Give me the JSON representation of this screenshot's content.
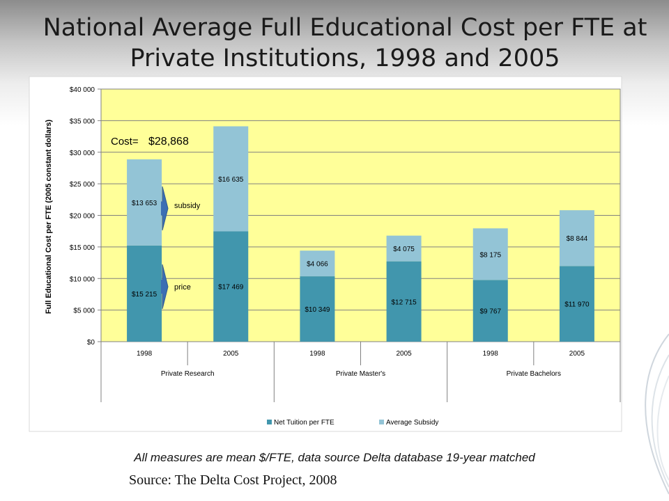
{
  "slide": {
    "title_line1": "National Average Full Educational Cost per FTE at",
    "title_line2": "Private Institutions, 1998 and 2005",
    "footnote": "All measures are mean $/FTE, data source Delta database 19-year matched",
    "source": "Source: The Delta Cost Project, 2008"
  },
  "chart_data": {
    "type": "bar",
    "stacked": true,
    "ylabel": "Full Educational Cost per FTE (2005 constant dollars)",
    "ylim": [
      0,
      40000
    ],
    "yticks": [
      0,
      5000,
      10000,
      15000,
      20000,
      25000,
      30000,
      35000,
      40000
    ],
    "ytick_labels": [
      "$0",
      "$5 000",
      "$10 000",
      "$15 000",
      "$20 000",
      "$25 000",
      "$30 000",
      "$35 000",
      "$40 000"
    ],
    "grid": true,
    "plot_background": "#ffff99",
    "categories": [
      "1998",
      "2005",
      "1998",
      "2005",
      "1998",
      "2005"
    ],
    "groups": [
      "Private Research",
      "Private Master's",
      "Private Bachelors"
    ],
    "series": [
      {
        "name": "Net Tuition per FTE",
        "color": "#4196ad",
        "values": [
          15215,
          17469,
          10349,
          12715,
          9767,
          11970
        ],
        "labels": [
          "$15 215",
          "$17 469",
          "$10 349",
          "$12 715",
          "$9 767",
          "$11 970"
        ]
      },
      {
        "name": "Average Subsidy",
        "color": "#93c4d6",
        "values": [
          13653,
          16635,
          4066,
          4075,
          8175,
          8844
        ],
        "labels": [
          "$13 653",
          "$16 635",
          "$4 066",
          "$4 075",
          "$8 175",
          "$8 844"
        ]
      }
    ],
    "legend_position": "bottom",
    "annotations": {
      "cost_prefix": "Cost=",
      "cost_value": "$28,868",
      "subsidy": "subsidy",
      "price": "price"
    }
  }
}
